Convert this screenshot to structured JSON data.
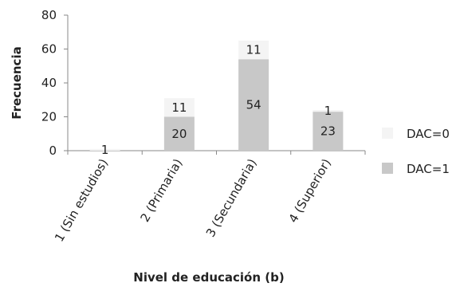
{
  "chart_data": {
    "type": "bar",
    "stacked": true,
    "title": "",
    "xlabel": "Nivel de educación (b)",
    "ylabel": "Frecuencia",
    "ylim": [
      0,
      80
    ],
    "yticks": [
      0,
      20,
      40,
      60,
      80
    ],
    "grid": false,
    "legend_position": "right",
    "categories": [
      "1 (Sin estudios)",
      "2 (Primaria)",
      "3 (Secundaria)",
      "4 (Superior)"
    ],
    "series": [
      {
        "name": "DAC=1",
        "color": "#c8c8c8",
        "values": [
          0,
          20,
          54,
          23
        ],
        "labels": [
          "",
          "20",
          "54",
          "23"
        ]
      },
      {
        "name": "DAC=0",
        "color": "#f4f4f4",
        "values": [
          1,
          11,
          11,
          1
        ],
        "labels": [
          "1",
          "11",
          "11",
          "1"
        ]
      }
    ]
  }
}
